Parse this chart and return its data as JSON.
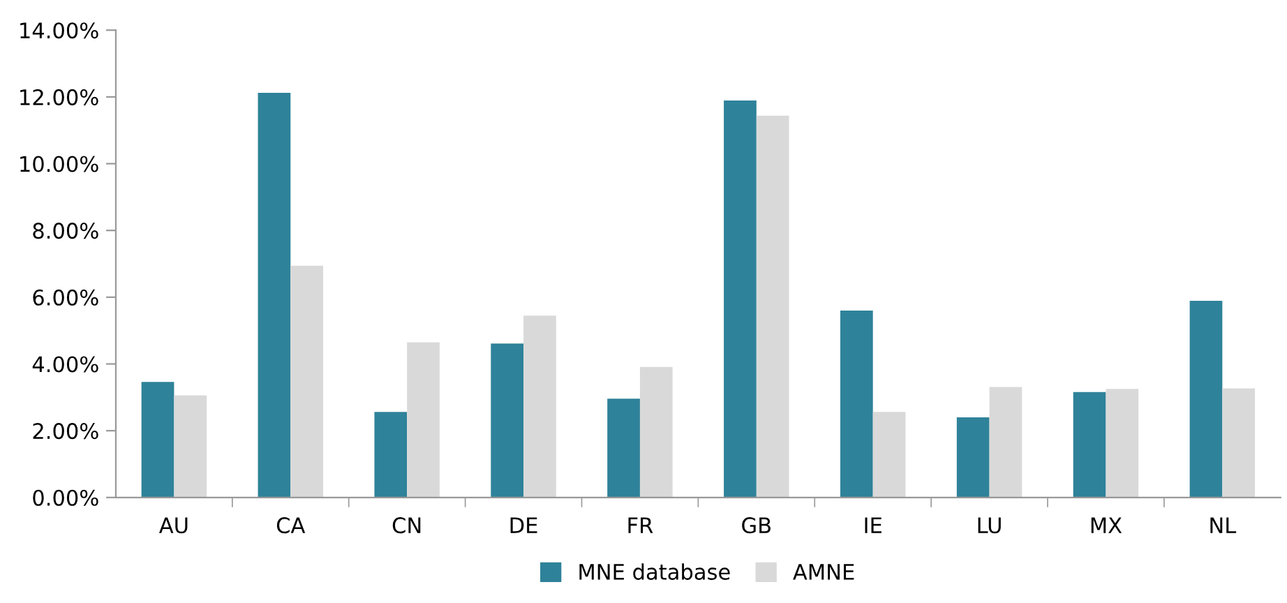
{
  "chart_data": {
    "type": "bar",
    "categories": [
      "AU",
      "CA",
      "CN",
      "DE",
      "FR",
      "GB",
      "IE",
      "LU",
      "MX",
      "NL"
    ],
    "series": [
      {
        "name": "MNE database",
        "color": "#2e8299",
        "values": [
          3.46,
          12.12,
          2.56,
          4.61,
          2.96,
          11.89,
          5.6,
          2.4,
          3.16,
          5.89
        ]
      },
      {
        "name": "AMNE",
        "color": "#d9d9d9",
        "values": [
          3.06,
          6.94,
          4.65,
          5.45,
          3.91,
          11.44,
          2.56,
          3.31,
          3.25,
          3.27
        ]
      }
    ],
    "ylim": [
      0,
      14
    ],
    "yticks": [
      {
        "value": 0,
        "label": "0.00%"
      },
      {
        "value": 2,
        "label": "2.00%"
      },
      {
        "value": 4,
        "label": "4.00%"
      },
      {
        "value": 6,
        "label": "6.00%"
      },
      {
        "value": 8,
        "label": "8.00%"
      },
      {
        "value": 10,
        "label": "10.00%"
      },
      {
        "value": 12,
        "label": "12.00%"
      },
      {
        "value": 14,
        "label": "14.00%"
      }
    ],
    "grid": false,
    "legend": "bottom"
  }
}
